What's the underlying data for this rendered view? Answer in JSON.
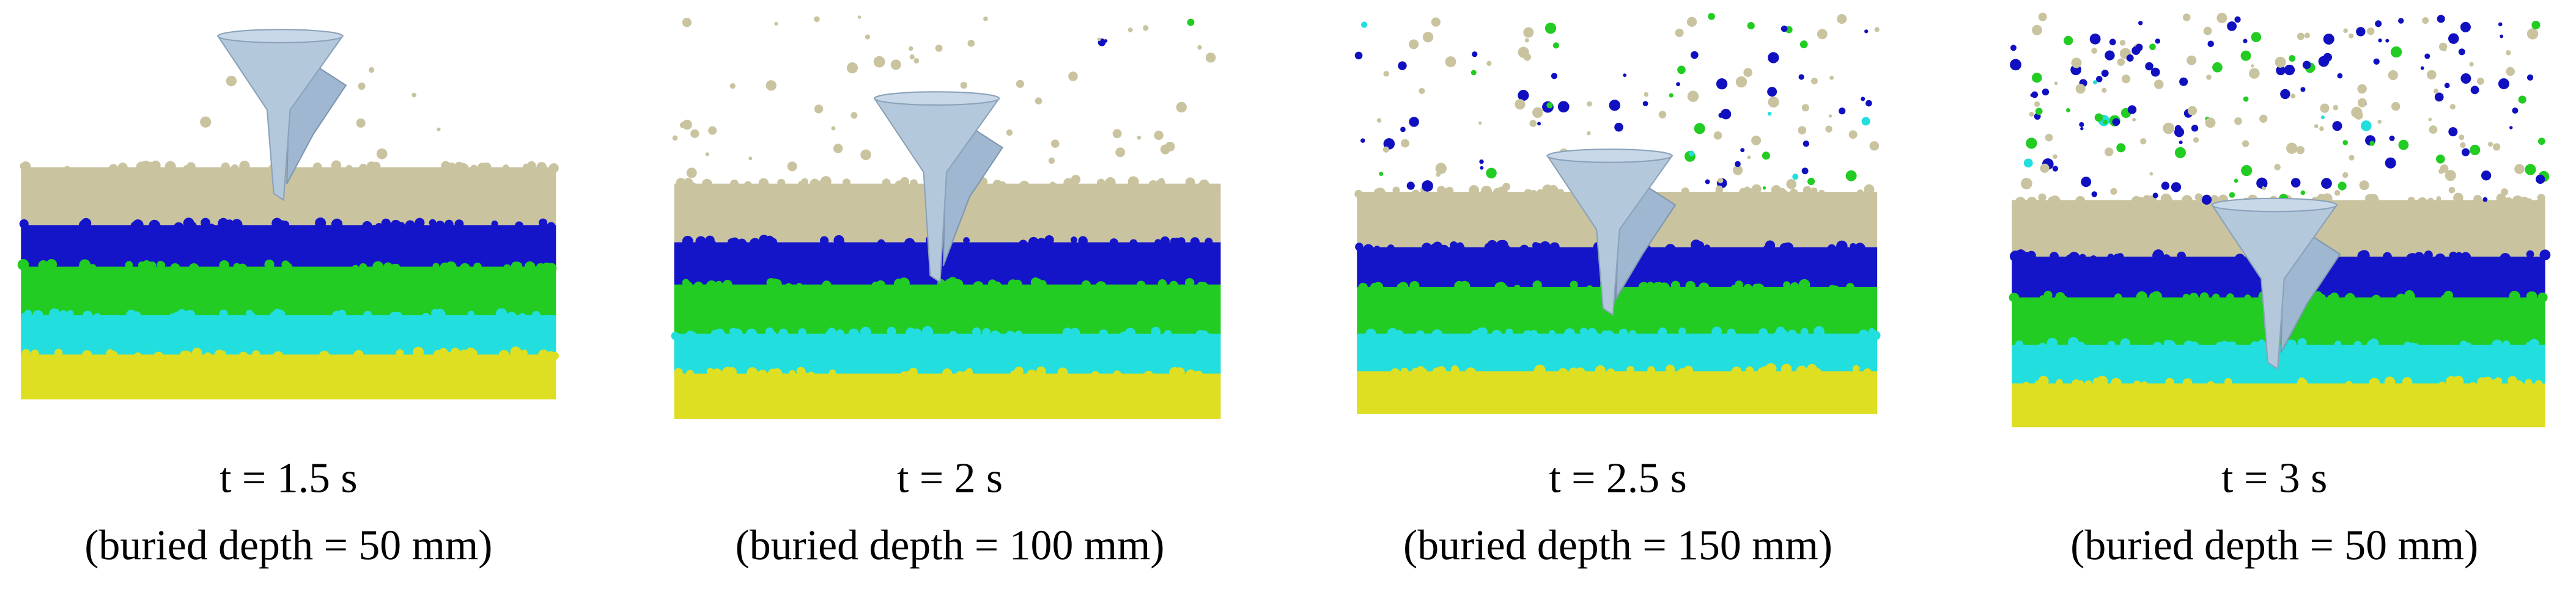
{
  "panels": [
    {
      "time": "t = 1.5 s",
      "depth": "(buried depth = 50 mm)"
    },
    {
      "time": "t = 2 s",
      "depth": "(buried depth = 100 mm)"
    },
    {
      "time": "t = 2.5 s",
      "depth": "(buried depth = 150 mm)"
    },
    {
      "time": "t = 3 s",
      "depth": "(buried depth = 50 mm)"
    }
  ]
}
